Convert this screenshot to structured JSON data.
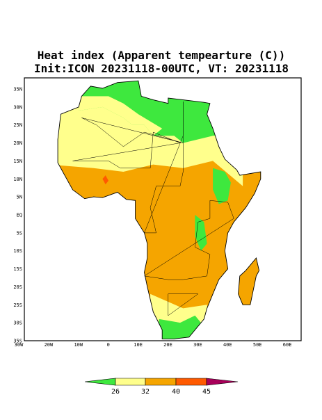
{
  "title": [
    "Heat index (Apparent tempearture (C))",
    "Init:ICON 20231118-00UTC, VT: 20231118"
  ],
  "lat_labels": [
    "35N",
    "30N",
    "25N",
    "20N",
    "15N",
    "10N",
    "5N",
    "EQ",
    "5S",
    "10S",
    "15S",
    "20S",
    "25S",
    "30S",
    "35S"
  ],
  "lon_labels": [
    "30W",
    "20W",
    "10W",
    "0",
    "10E",
    "20E",
    "30E",
    "40E",
    "50E",
    "60E"
  ],
  "colorbar": {
    "labels": [
      26,
      32,
      40,
      45
    ],
    "colors": [
      "#3ee83e",
      "#ffff8c",
      "#f5a500",
      "#ff5a00",
      "#a8005a"
    ]
  }
}
